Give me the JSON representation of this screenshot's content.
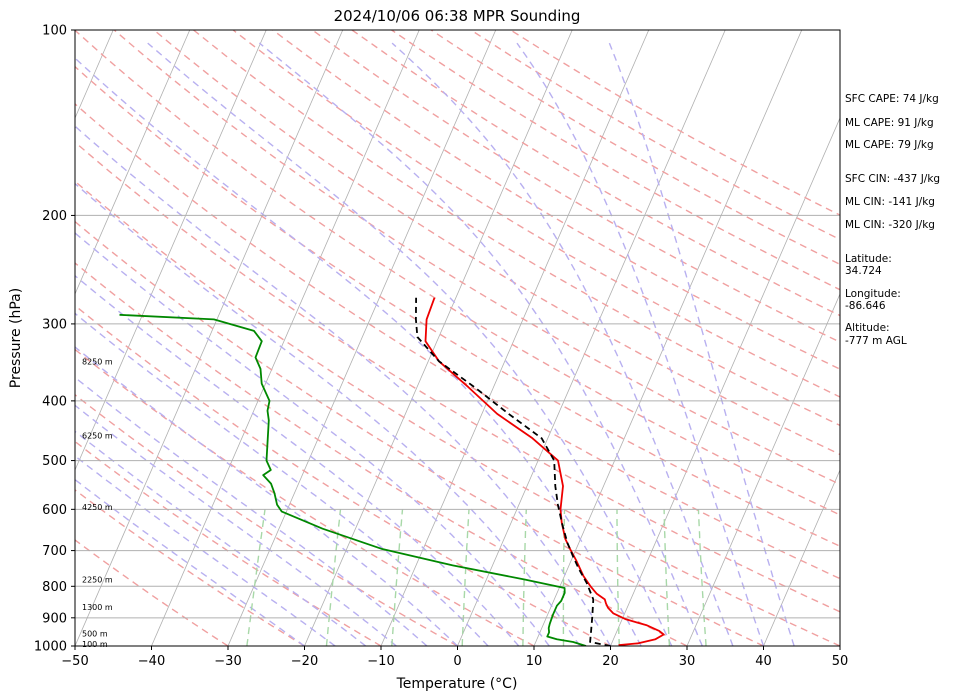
{
  "chart_data": {
    "type": "line",
    "subtype": "skew-t log-p sounding",
    "title": "2024/10/06 06:38 MPR Sounding",
    "xlabel": "Temperature (°C)",
    "ylabel": "Pressure (hPa)",
    "xlim": [
      -50,
      50
    ],
    "ylim": [
      1000,
      100
    ],
    "y_scale": "log",
    "x_ticks": [
      "−50",
      "−40",
      "−30",
      "−20",
      "−10",
      "0",
      "10",
      "20",
      "30",
      "40",
      "50"
    ],
    "y_ticks": [
      "100",
      "200",
      "300",
      "400",
      "500",
      "600",
      "700",
      "800",
      "900",
      "1000"
    ],
    "y_tick_values": [
      100,
      200,
      300,
      400,
      500,
      600,
      700,
      800,
      900,
      1000
    ],
    "x_tick_values": [
      -50,
      -40,
      -30,
      -20,
      -10,
      0,
      10,
      20,
      30,
      40,
      50
    ],
    "height_labels": [
      {
        "text": "8250 m",
        "p": 345
      },
      {
        "text": "6250 m",
        "p": 455
      },
      {
        "text": "4250 m",
        "p": 595
      },
      {
        "text": "2250 m",
        "p": 780
      },
      {
        "text": "1300 m",
        "p": 865
      },
      {
        "text": "500 m",
        "p": 955
      },
      {
        "text": "100 m",
        "p": 992
      }
    ],
    "series": [
      {
        "color": "#ee0000",
        "style": "solid",
        "points": [
          [
            21.0,
            997
          ],
          [
            23.5,
            990
          ],
          [
            25.5,
            975
          ],
          [
            26.3,
            958
          ],
          [
            25.5,
            945
          ],
          [
            23.5,
            925
          ],
          [
            20.5,
            905
          ],
          [
            18.5,
            885
          ],
          [
            17.5,
            867
          ],
          [
            17.0,
            853
          ],
          [
            16.6,
            840
          ],
          [
            15.2,
            822
          ],
          [
            14.0,
            800
          ],
          [
            12.5,
            770
          ],
          [
            10.6,
            725
          ],
          [
            9.4,
            700
          ],
          [
            8.0,
            670
          ],
          [
            6.6,
            630
          ],
          [
            5.7,
            600
          ],
          [
            4.7,
            550
          ],
          [
            2.6,
            500
          ],
          [
            -2.0,
            460
          ],
          [
            -8.0,
            420
          ],
          [
            -13.3,
            380
          ],
          [
            -18.6,
            345
          ],
          [
            -21.5,
            320
          ],
          [
            -22.6,
            295
          ],
          [
            -22.8,
            272
          ]
        ]
      },
      {
        "color": "#000000",
        "style": "dashed",
        "points": [
          [
            20.0,
            1000
          ],
          [
            17.1,
            985
          ],
          [
            16.6,
            945
          ],
          [
            16.0,
            900
          ],
          [
            15.1,
            840
          ],
          [
            13.3,
            790
          ],
          [
            11.5,
            750
          ],
          [
            10.0,
            715
          ],
          [
            8.5,
            680
          ],
          [
            6.8,
            635
          ],
          [
            5.1,
            590
          ],
          [
            3.7,
            550
          ],
          [
            2.1,
            500
          ],
          [
            -0.8,
            460
          ],
          [
            -6.5,
            420
          ],
          [
            -12.5,
            380
          ],
          [
            -18.6,
            345
          ],
          [
            -22.8,
            315
          ],
          [
            -24.0,
            295
          ],
          [
            -25.2,
            272
          ]
        ]
      },
      {
        "color": "#008800",
        "style": "solid",
        "points": [
          [
            16.8,
            1000
          ],
          [
            14.9,
            985
          ],
          [
            12.6,
            975
          ],
          [
            11.2,
            965
          ],
          [
            11.2,
            950
          ],
          [
            10.9,
            935
          ],
          [
            10.8,
            920
          ],
          [
            10.7,
            890
          ],
          [
            10.7,
            860
          ],
          [
            11.0,
            845
          ],
          [
            11.0,
            820
          ],
          [
            10.7,
            805
          ],
          [
            5.0,
            780
          ],
          [
            -5.2,
            740
          ],
          [
            -15.5,
            695
          ],
          [
            -24.3,
            645
          ],
          [
            -30.6,
            605
          ],
          [
            -31.6,
            590
          ],
          [
            -32.6,
            565
          ],
          [
            -33.6,
            545
          ],
          [
            -35.1,
            528
          ],
          [
            -34.4,
            518
          ],
          [
            -35.5,
            500
          ],
          [
            -37.5,
            430
          ],
          [
            -38.2,
            415
          ],
          [
            -38.5,
            400
          ],
          [
            -40.5,
            375
          ],
          [
            -41.5,
            355
          ],
          [
            -42.8,
            340
          ],
          [
            -42.9,
            320
          ],
          [
            -44.5,
            308
          ],
          [
            -50.4,
            295
          ],
          [
            -63.0,
            290
          ]
        ]
      }
    ],
    "annotations": [
      "SFC CAPE: 74 J/kg",
      "ML CAPE: 91 J/kg",
      "ML CAPE: 79 J/kg",
      "SFC CIN: -437 J/kg",
      "ML CIN: -141 J/kg",
      "ML CIN: -320 J/kg",
      "Latitude:",
      "34.724",
      "Longitude:",
      "-86.646",
      "Altitude:",
      "-777 m AGL"
    ],
    "grid": true,
    "reference_lines": [
      "isotherms",
      "dry adiabats",
      "moist adiabats",
      "mixing ratio lines"
    ],
    "colors": {
      "isotherm": "#b0b0b0",
      "dry_adiabat": "#f0a0a0",
      "moist_adiabat": "#b8b0f0",
      "mixing_ratio": "#a8d8a8"
    }
  }
}
